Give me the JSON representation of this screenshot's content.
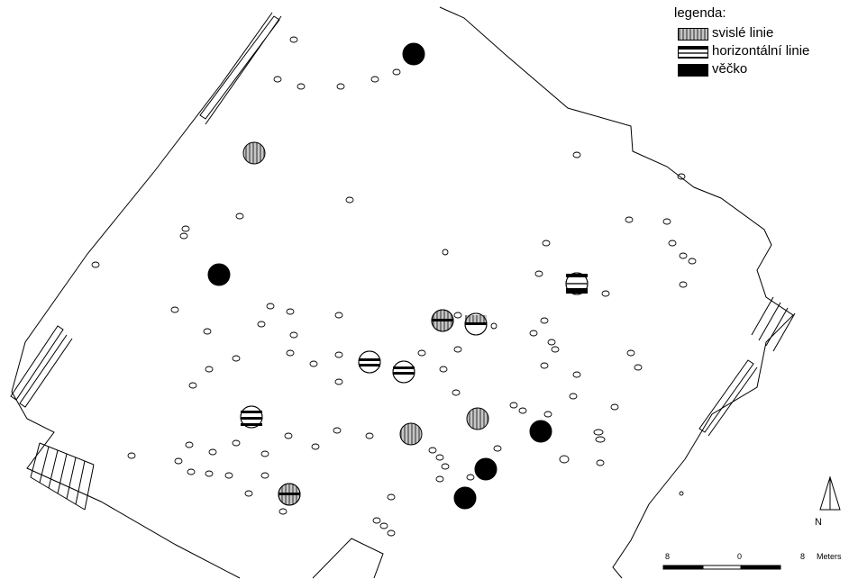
{
  "legend": {
    "title": "legenda:",
    "items": [
      {
        "key": "vert",
        "label": "svislé linie"
      },
      {
        "key": "horiz",
        "label": "horizontální linie"
      },
      {
        "key": "cap",
        "label": "věčko"
      }
    ]
  },
  "north_arrow": {
    "label": "N"
  },
  "scale_bar": {
    "labels": [
      "8",
      "0",
      "8"
    ],
    "unit": "Meters"
  },
  "colors": {
    "outline": "#000000",
    "vertical_fill": "#9a9a9a",
    "cap_fill": "#000000"
  },
  "features": {
    "marked_postholes": [
      {
        "pattern": "cap"
      },
      {
        "pattern": "vert"
      },
      {
        "pattern": "cap"
      },
      {
        "pattern": "horiz"
      },
      {
        "pattern": "horiz"
      },
      {
        "pattern": "horiz"
      },
      {
        "pattern": "horiz"
      },
      {
        "pattern": "horiz"
      },
      {
        "pattern": "horiz"
      },
      {
        "pattern": "vert"
      },
      {
        "pattern": "vert"
      },
      {
        "pattern": "cap"
      },
      {
        "pattern": "cap"
      },
      {
        "pattern": "cap"
      },
      {
        "pattern": "horiz"
      }
    ]
  }
}
